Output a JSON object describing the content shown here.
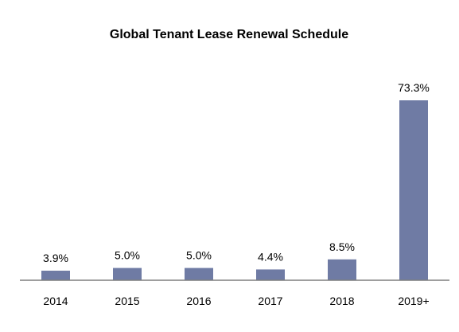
{
  "chart_data": {
    "type": "bar",
    "title": "Global Tenant Lease Renewal Schedule",
    "xlabel": "",
    "ylabel": "",
    "categories": [
      "2014",
      "2015",
      "2016",
      "2017",
      "2018",
      "2019+"
    ],
    "values": [
      3.9,
      5.0,
      5.0,
      4.4,
      8.5,
      73.3
    ],
    "data_labels": [
      "3.9%",
      "5.0%",
      "5.0%",
      "4.4%",
      "8.5%",
      "73.3%"
    ],
    "unit": "%",
    "ylim": [
      0,
      73.3
    ],
    "grid": false,
    "legend": "none",
    "bar_color": "#6f7ba4",
    "axis_color": "#7f7f7f"
  }
}
